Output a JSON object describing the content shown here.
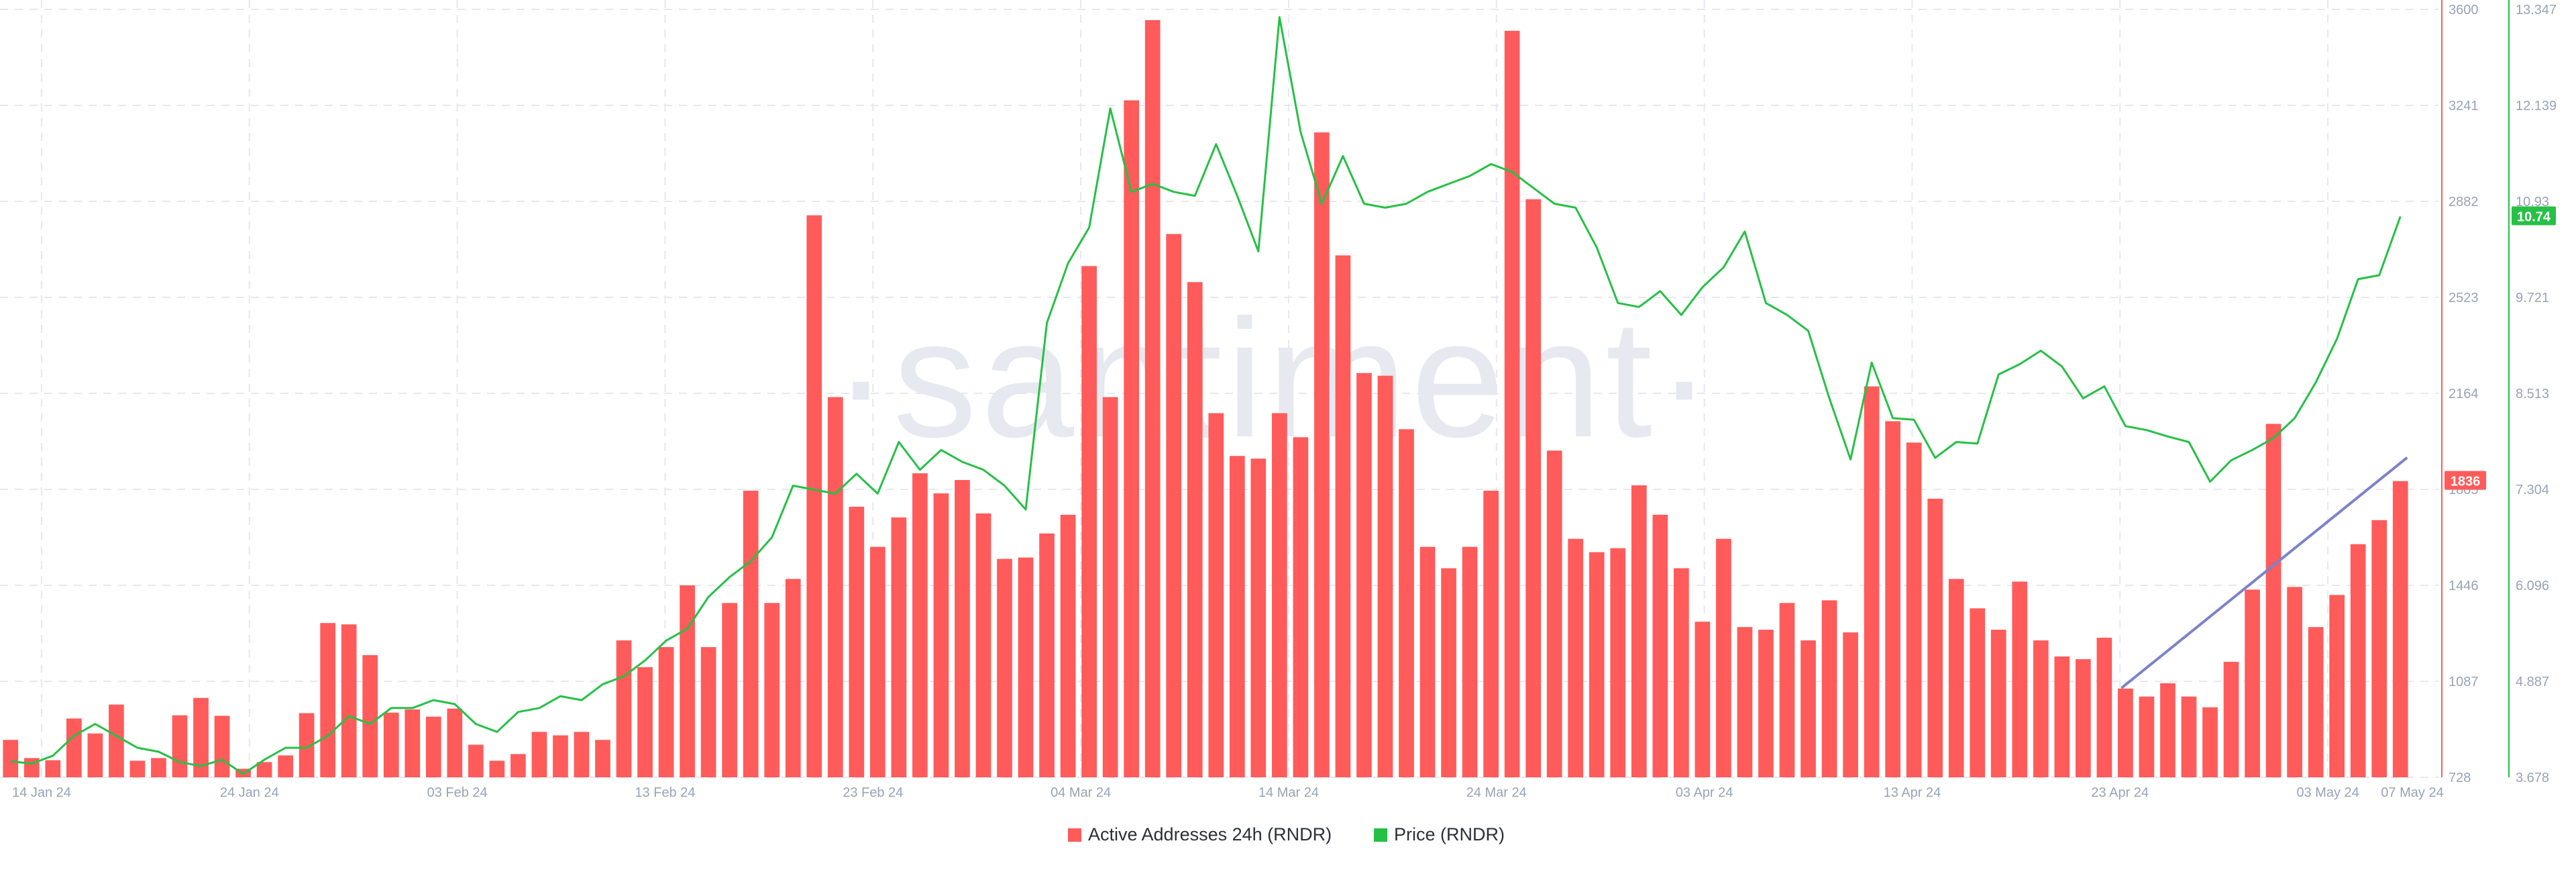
{
  "watermark": "·santiment·",
  "colors": {
    "addresses": "#ff5b5b",
    "price": "#26c046",
    "trend": "#7b83c9",
    "grid": "#e6e8ef"
  },
  "chart_data": {
    "type": "bar",
    "x_tick_labels": [
      "14 Jan 24",
      "24 Jan 24",
      "03 Feb 24",
      "13 Feb 24",
      "23 Feb 24",
      "04 Mar 24",
      "14 Mar 24",
      "24 Mar 24",
      "03 Apr 24",
      "13 Apr 24",
      "23 Apr 24",
      "03 May 24",
      "07 May 24"
    ],
    "x_range": [
      "2024-01-12",
      "2024-05-07"
    ],
    "grid": true,
    "legend_position": "bottom-center",
    "series": [
      {
        "name": "Active Addresses 24h (RNDR)",
        "type": "bar",
        "axis": "left",
        "ylim": [
          728,
          3600
        ],
        "y_ticks": [
          "728",
          "1087",
          "1446",
          "1805",
          "2164",
          "2523",
          "2882",
          "3241",
          "3600"
        ],
        "last_value_label": "1836",
        "values": [
          868,
          800,
          792,
          948,
          892,
          1000,
          790,
          800,
          960,
          1025,
          958,
          760,
          785,
          810,
          968,
          1305,
          1300,
          1185,
          970,
          982,
          955,
          985,
          850,
          790,
          815,
          898,
          885,
          898,
          868,
          1240,
          1140,
          1215,
          1446,
          1215,
          1380,
          1800,
          1380,
          1470,
          2830,
          2150,
          1740,
          1590,
          1700,
          1865,
          1790,
          1840,
          1715,
          1545,
          1550,
          1640,
          1710,
          2640,
          2150,
          3260,
          3560,
          2760,
          2580,
          2090,
          1930,
          1920,
          2090,
          2000,
          3140,
          2680,
          2240,
          2230,
          2030,
          1590,
          1510,
          1590,
          1800,
          3520,
          2890,
          1950,
          1620,
          1570,
          1585,
          1820,
          1710,
          1510,
          1310,
          1620,
          1290,
          1280,
          1380,
          1240,
          1390,
          1270,
          2190,
          2060,
          1980,
          1770,
          1470,
          1360,
          1280,
          1460,
          1240,
          1180,
          1170,
          1250,
          1060,
          1030,
          1080,
          1030,
          990,
          1160,
          1430,
          2050,
          1440,
          1290,
          1410,
          1600,
          1690,
          1836
        ]
      },
      {
        "name": "Price (RNDR)",
        "type": "line",
        "axis": "right",
        "ylim": [
          3.678,
          13.347
        ],
        "y_ticks": [
          "3.678",
          "4.887",
          "6.096",
          "7.304",
          "8.513",
          "9.721",
          "10.93",
          "12.139",
          "13.347"
        ],
        "last_value_label": "10.74",
        "values": [
          3.88,
          3.85,
          3.95,
          4.2,
          4.35,
          4.2,
          4.05,
          4.0,
          3.87,
          3.82,
          3.9,
          3.72,
          3.9,
          4.05,
          4.05,
          4.2,
          4.45,
          4.35,
          4.55,
          4.55,
          4.65,
          4.6,
          4.35,
          4.25,
          4.5,
          4.55,
          4.7,
          4.65,
          4.85,
          4.95,
          5.15,
          5.4,
          5.55,
          5.95,
          6.2,
          6.4,
          6.7,
          7.35,
          7.3,
          7.25,
          7.5,
          7.25,
          7.9,
          7.55,
          7.8,
          7.65,
          7.55,
          7.35,
          7.05,
          9.4,
          10.15,
          10.6,
          12.1,
          11.05,
          11.15,
          11.05,
          11.0,
          11.65,
          11.0,
          10.3,
          13.25,
          11.8,
          10.9,
          11.5,
          10.9,
          10.85,
          10.9,
          11.05,
          11.15,
          11.25,
          11.4,
          11.3,
          11.1,
          10.9,
          10.85,
          10.35,
          9.65,
          9.6,
          9.8,
          9.5,
          9.85,
          10.1,
          10.55,
          9.65,
          9.5,
          9.3,
          8.45,
          7.68,
          8.9,
          8.2,
          8.18,
          7.7,
          7.9,
          7.88,
          8.75,
          8.88,
          9.05,
          8.85,
          8.45,
          8.6,
          8.1,
          8.05,
          7.97,
          7.9,
          7.4,
          7.67,
          7.8,
          7.95,
          8.2,
          8.65,
          9.2,
          9.95,
          10.0,
          10.74
        ]
      }
    ]
  },
  "legend": {
    "items": [
      {
        "label": "Active Addresses 24h (RNDR)",
        "color": "#ff5b5b"
      },
      {
        "label": "Price (RNDR)",
        "color": "#26c046"
      }
    ]
  }
}
